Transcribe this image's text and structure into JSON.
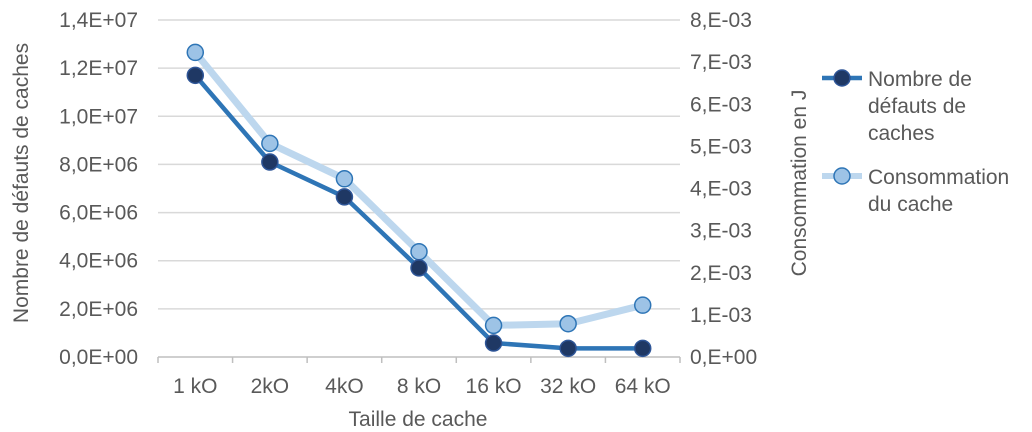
{
  "chart_data": {
    "type": "line",
    "categories": [
      "1 kO",
      "2kO",
      "4kO",
      "8 kO",
      "16 kO",
      "32 kO",
      "64 kO"
    ],
    "xlabel": "Taille de cache",
    "ylabel": "Nombre de défauts de caches",
    "y2label": "Consommation en J",
    "ylim": [
      0,
      14000000
    ],
    "y2lim": [
      0,
      0.008
    ],
    "yticks": [
      0,
      2000000,
      4000000,
      6000000,
      8000000,
      10000000,
      12000000,
      14000000
    ],
    "ytick_labels": [
      "0,0E+00",
      "2,0E+06",
      "4,0E+06",
      "6,0E+06",
      "8,0E+06",
      "1,0E+07",
      "1,2E+07",
      "1,4E+07"
    ],
    "y2ticks": [
      0,
      0.001,
      0.002,
      0.003,
      0.004,
      0.005,
      0.006,
      0.007,
      0.008
    ],
    "y2tick_labels": [
      "0,E+00",
      "1,E-03",
      "2,E-03",
      "3,E-03",
      "4,E-03",
      "5,E-03",
      "6,E-03",
      "7,E-03",
      "8,E-03"
    ],
    "grid": true,
    "legend_position": "right",
    "series": [
      {
        "name_lines": [
          "Nombre de",
          "défauts de",
          "caches"
        ],
        "axis": "left",
        "color": "#2e75b6",
        "marker_fill": "#1f3864",
        "marker_stroke": "#2e5597",
        "values": [
          11700000,
          8100000,
          6650000,
          3700000,
          580000,
          360000,
          360000
        ]
      },
      {
        "name_lines": [
          "Consommation",
          "du cache"
        ],
        "axis": "right",
        "color": "#bdd7ee",
        "marker_fill": "#9dc3e6",
        "marker_stroke": "#2e75b6",
        "values": [
          0.00723,
          0.00507,
          0.00423,
          0.0025,
          0.00075,
          0.00079,
          0.00123
        ]
      }
    ]
  }
}
